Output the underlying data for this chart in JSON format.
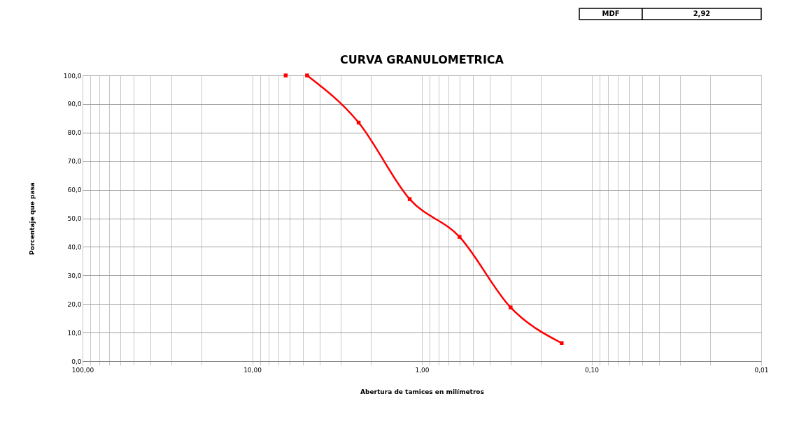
{
  "chart_data": {
    "type": "line",
    "title": "CURVA GRANULOMETRICA",
    "xlabel": "Abertura de tamices en milímetros",
    "ylabel": "Porcentaje que pasa",
    "log": "x",
    "grid": true,
    "marker": "square",
    "line_style": "solid",
    "annotations": [
      "MDF",
      "2,92"
    ],
    "series": [
      {
        "type": "scatter",
        "color": "#ff0000",
        "x": [
          6.35
        ],
        "values": [
          100
        ]
      },
      {
        "color": "#ff0000",
        "x": [
          4.75,
          2.36,
          1.18,
          0.6,
          0.3,
          0.15
        ],
        "values": [
          100,
          83.5,
          56.7,
          43.5,
          18.8,
          6.3
        ]
      }
    ],
    "xlim": [
      100,
      0.01
    ],
    "xticks": [
      {
        "value": 100,
        "label": "100,00"
      },
      {
        "value": 90,
        "label": null
      },
      {
        "value": 80,
        "label": null
      },
      {
        "value": 70,
        "label": null
      },
      {
        "value": 60,
        "label": null
      },
      {
        "value": 50,
        "label": null
      },
      {
        "value": 40,
        "label": null
      },
      {
        "value": 30,
        "label": null
      },
      {
        "value": 20,
        "label": null
      },
      {
        "value": 10,
        "label": "10,00"
      },
      {
        "value": 9,
        "label": null
      },
      {
        "value": 8,
        "label": null
      },
      {
        "value": 7,
        "label": null
      },
      {
        "value": 6,
        "label": null
      },
      {
        "value": 5,
        "label": null
      },
      {
        "value": 4,
        "label": null
      },
      {
        "value": 3,
        "label": null
      },
      {
        "value": 2,
        "label": null
      },
      {
        "value": 1,
        "label": "1,00"
      },
      {
        "value": 0.9,
        "label": null
      },
      {
        "value": 0.8,
        "label": null
      },
      {
        "value": 0.7,
        "label": null
      },
      {
        "value": 0.6,
        "label": null
      },
      {
        "value": 0.5,
        "label": null
      },
      {
        "value": 0.4,
        "label": null
      },
      {
        "value": 0.3,
        "label": null
      },
      {
        "value": 0.2,
        "label": null
      },
      {
        "value": 0.1,
        "label": "0,10"
      },
      {
        "value": 0.09,
        "label": null
      },
      {
        "value": 0.08,
        "label": null
      },
      {
        "value": 0.07,
        "label": null
      },
      {
        "value": 0.06,
        "label": null
      },
      {
        "value": 0.05,
        "label": null
      },
      {
        "value": 0.04,
        "label": null
      },
      {
        "value": 0.03,
        "label": null
      },
      {
        "value": 0.02,
        "label": null
      },
      {
        "value": 0.01,
        "label": "0,01"
      }
    ],
    "ylim": [
      0,
      100
    ],
    "yticks": [
      {
        "value": 0,
        "label": "0,0"
      },
      {
        "value": 10,
        "label": "10,0"
      },
      {
        "value": 20,
        "label": "20,0"
      },
      {
        "value": 30,
        "label": "30,0"
      },
      {
        "value": 40,
        "label": "40,0"
      },
      {
        "value": 50,
        "label": "50,0"
      },
      {
        "value": 60,
        "label": "60,0"
      },
      {
        "value": 70,
        "label": "70,0"
      },
      {
        "value": 80,
        "label": "80,0"
      },
      {
        "value": 90,
        "label": "90,0"
      },
      {
        "value": 100,
        "label": "100,0"
      }
    ]
  }
}
